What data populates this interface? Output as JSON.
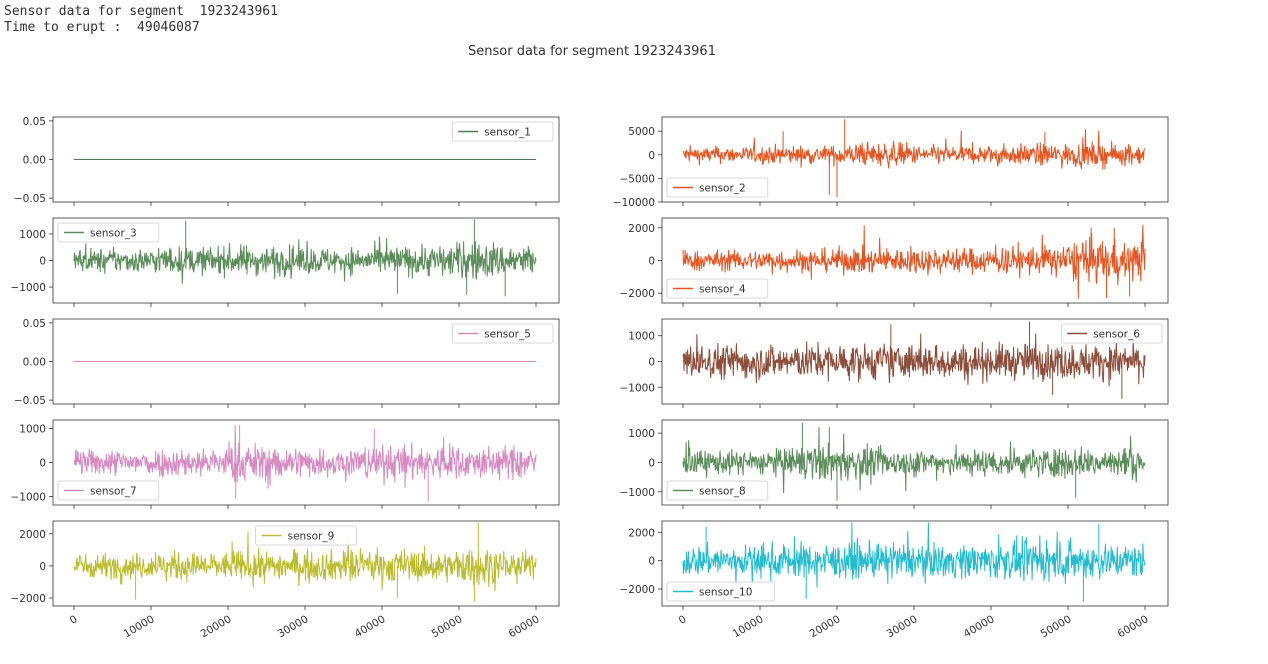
{
  "console": {
    "line1": "Sensor data for segment  1923243961",
    "line2": "Time to erupt :  49046087"
  },
  "chart_data": {
    "type": "line",
    "title": "Sensor data for segment 1923243961",
    "x_range": [
      0,
      60000
    ],
    "x_ticks": [
      0,
      10000,
      20000,
      30000,
      40000,
      50000,
      60000
    ],
    "panels": [
      {
        "name": "sensor_1",
        "color": "#4a7b52",
        "ylim": [
          -0.055,
          0.055
        ],
        "yticks": [
          0.05,
          0.0,
          -0.05
        ],
        "ytick_labels": [
          "0.05",
          "0.00",
          "−0.05"
        ],
        "legend": "upper right",
        "amplitude": 0,
        "envelope": [
          0,
          0,
          0,
          0,
          0,
          0,
          0,
          0,
          0,
          0,
          0,
          0
        ]
      },
      {
        "name": "sensor_2",
        "color": "#e8531f",
        "ylim": [
          -10000,
          8000
        ],
        "yticks": [
          5000,
          0,
          -5000,
          -10000
        ],
        "ytick_labels": [
          "5000",
          "0",
          "−5000",
          "−10000"
        ],
        "legend": "lower left",
        "amplitude": 2500,
        "spikes": [
          [
            21000,
            7500
          ],
          [
            19000,
            -8500
          ],
          [
            20000,
            -9000
          ],
          [
            13000,
            5000
          ],
          [
            47000,
            4800
          ]
        ],
        "envelope": [
          0.8,
          0.8,
          0.9,
          0.9,
          1.1,
          1.2,
          0.9,
          0.9,
          1.0,
          1.1,
          1.2,
          1.0
        ]
      },
      {
        "name": "sensor_3",
        "color": "#5b8c5a",
        "ylim": [
          -1600,
          1600
        ],
        "yticks": [
          1000,
          0,
          -1000
        ],
        "ytick_labels": [
          "1000",
          "0",
          "−1000"
        ],
        "legend": "upper left",
        "amplitude": 650,
        "spikes": [
          [
            14500,
            1500
          ],
          [
            52000,
            1550
          ],
          [
            51000,
            -1300
          ],
          [
            56000,
            -1350
          ],
          [
            42000,
            -1250
          ]
        ],
        "envelope": [
          0.8,
          0.8,
          0.9,
          0.9,
          1.0,
          1.0,
          0.9,
          0.9,
          1.0,
          1.1,
          1.3,
          1.1
        ]
      },
      {
        "name": "sensor_4",
        "color": "#e8531f",
        "ylim": [
          -2600,
          2600
        ],
        "yticks": [
          2000,
          0,
          -2000
        ],
        "ytick_labels": [
          "2000",
          "0",
          "−2000"
        ],
        "legend": "lower left",
        "amplitude": 1000,
        "spikes": [
          [
            53000,
            2000
          ],
          [
            56000,
            2000
          ],
          [
            55000,
            -2300
          ],
          [
            58000,
            -2200
          ]
        ],
        "envelope": [
          0.7,
          0.7,
          0.8,
          0.8,
          0.9,
          0.9,
          0.9,
          0.9,
          1.0,
          1.1,
          1.5,
          1.4
        ]
      },
      {
        "name": "sensor_5",
        "color": "#d68ac2",
        "ylim": [
          -0.055,
          0.055
        ],
        "yticks": [
          0.05,
          0.0,
          -0.05
        ],
        "ytick_labels": [
          "0.05",
          "0.00",
          "−0.05"
        ],
        "legend": "upper right",
        "amplitude": 0,
        "envelope": [
          0,
          0,
          0,
          0,
          0,
          0,
          0,
          0,
          0,
          0,
          0,
          0
        ]
      },
      {
        "name": "sensor_6",
        "color": "#8c4d3a",
        "ylim": [
          -1650,
          1650
        ],
        "yticks": [
          1000,
          0,
          -1000
        ],
        "ytick_labels": [
          "1000",
          "0",
          "−1000"
        ],
        "legend": "upper right",
        "amplitude": 800,
        "spikes": [
          [
            45000,
            1550
          ],
          [
            27000,
            1450
          ],
          [
            57000,
            -1450
          ],
          [
            48000,
            -1300
          ]
        ],
        "envelope": [
          1.0,
          1.0,
          1.0,
          1.0,
          1.0,
          1.0,
          1.0,
          1.0,
          1.0,
          1.0,
          1.0,
          1.0
        ]
      },
      {
        "name": "sensor_7",
        "color": "#d68ac2",
        "ylim": [
          -1250,
          1250
        ],
        "yticks": [
          1000,
          0,
          -1000
        ],
        "ytick_labels": [
          "1000",
          "0",
          "−1000"
        ],
        "legend": "lower left",
        "amplitude": 550,
        "spikes": [
          [
            21500,
            1100
          ],
          [
            46000,
            -1150
          ],
          [
            21000,
            -1050
          ],
          [
            39000,
            1000
          ]
        ],
        "envelope": [
          0.8,
          0.8,
          0.9,
          0.9,
          1.2,
          1.0,
          0.9,
          1.0,
          1.1,
          1.1,
          1.0,
          1.0
        ]
      },
      {
        "name": "sensor_8",
        "color": "#5b8c5a",
        "ylim": [
          -1450,
          1450
        ],
        "yticks": [
          1000,
          0,
          -1000
        ],
        "ytick_labels": [
          "1000",
          "0",
          "−1000"
        ],
        "legend": "lower left",
        "amplitude": 600,
        "spikes": [
          [
            15500,
            1350
          ],
          [
            20000,
            -1300
          ],
          [
            19000,
            1200
          ],
          [
            51000,
            -1200
          ]
        ],
        "envelope": [
          0.8,
          0.8,
          0.9,
          1.2,
          1.1,
          0.9,
          0.9,
          0.9,
          0.9,
          1.0,
          1.0,
          1.0
        ]
      },
      {
        "name": "sensor_9",
        "color": "#bcbd2e",
        "ylim": [
          -2500,
          2800
        ],
        "yticks": [
          2000,
          0,
          -2000
        ],
        "ytick_labels": [
          "2000",
          "0",
          "−2000"
        ],
        "legend": "upper center",
        "amplitude": 1000,
        "spikes": [
          [
            52500,
            2700
          ],
          [
            52000,
            -2200
          ],
          [
            8000,
            -2100
          ],
          [
            42000,
            -2000
          ]
        ],
        "envelope": [
          0.9,
          0.9,
          1.0,
          1.0,
          1.1,
          1.1,
          1.1,
          1.2,
          1.2,
          1.1,
          1.4,
          1.0
        ]
      },
      {
        "name": "sensor_10",
        "color": "#23bccf",
        "ylim": [
          -3200,
          2800
        ],
        "yticks": [
          2000,
          0,
          -2000
        ],
        "ytick_labels": [
          "2000",
          "0",
          "−2000"
        ],
        "legend": "lower left",
        "amplitude": 1400,
        "spikes": [
          [
            54000,
            2600
          ],
          [
            52000,
            -2900
          ],
          [
            16000,
            -2700
          ],
          [
            3000,
            2400
          ]
        ],
        "envelope": [
          0.9,
          0.9,
          1.0,
          1.0,
          1.0,
          1.0,
          1.0,
          1.0,
          1.1,
          1.1,
          1.1,
          1.0
        ]
      }
    ]
  }
}
